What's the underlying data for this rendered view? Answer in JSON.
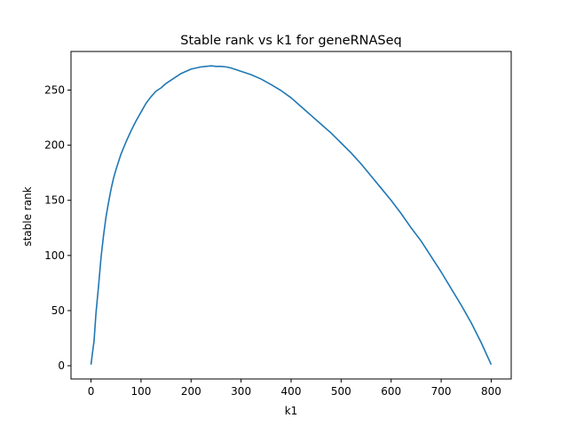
{
  "chart_data": {
    "type": "line",
    "title": "Stable rank vs k1 for geneRNASeq",
    "xlabel": "k1",
    "ylabel": "stable rank",
    "xlim": [
      -40,
      840
    ],
    "ylim": [
      -12,
      285
    ],
    "xticks": [
      0,
      100,
      200,
      300,
      400,
      500,
      600,
      700,
      800
    ],
    "yticks": [
      0,
      50,
      100,
      150,
      200,
      250
    ],
    "grid": false,
    "legend": "none",
    "series": [
      {
        "color": "#1f77b4",
        "x": [
          0,
          3,
          6,
          10,
          15,
          20,
          25,
          30,
          35,
          40,
          45,
          50,
          60,
          70,
          80,
          90,
          100,
          110,
          120,
          130,
          140,
          150,
          160,
          170,
          180,
          190,
          200,
          210,
          220,
          230,
          240,
          250,
          260,
          270,
          280,
          290,
          300,
          320,
          340,
          360,
          380,
          400,
          420,
          440,
          460,
          480,
          500,
          520,
          540,
          560,
          580,
          600,
          620,
          640,
          660,
          680,
          700,
          720,
          740,
          760,
          780,
          800
        ],
        "y": [
          1,
          12,
          22,
          48,
          72,
          98,
          118,
          135,
          148,
          160,
          170,
          178,
          192,
          203,
          213,
          222,
          230,
          238,
          244,
          249,
          252,
          256,
          259,
          262,
          265,
          267,
          269,
          270,
          271,
          271.5,
          272,
          271.5,
          271.5,
          271,
          270,
          268.5,
          267,
          264,
          260,
          255,
          249.5,
          243,
          235,
          227,
          219,
          211,
          202,
          193,
          183,
          172,
          161,
          150,
          138,
          125,
          113,
          99,
          85,
          70,
          55,
          39,
          21,
          1
        ]
      }
    ]
  }
}
